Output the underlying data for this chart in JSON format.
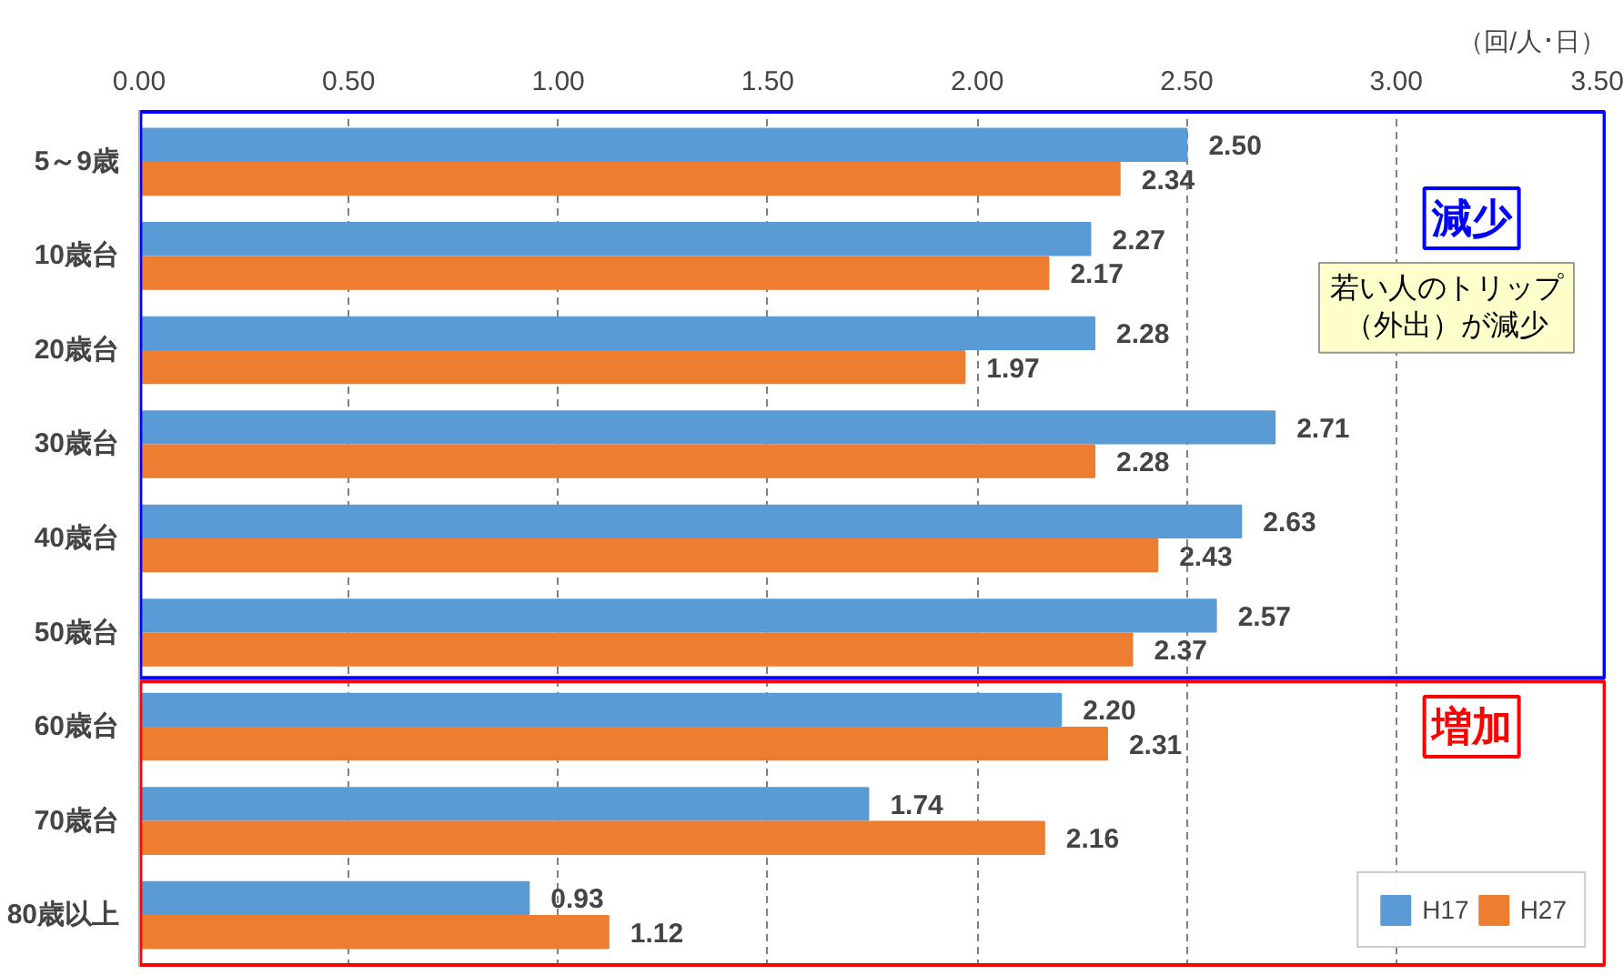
{
  "chart_data": {
    "type": "bar",
    "orientation": "horizontal",
    "categories": [
      "5～9歳",
      "10歳台",
      "20歳台",
      "30歳台",
      "40歳台",
      "50歳台",
      "60歳台",
      "70歳台",
      "80歳以上"
    ],
    "series": [
      {
        "name": "H17",
        "color": "#5b9bd5",
        "values": [
          2.5,
          2.27,
          2.28,
          2.71,
          2.63,
          2.57,
          2.2,
          1.74,
          0.93
        ],
        "value_labels": [
          "2.50",
          "2.27",
          "2.28",
          "2.71",
          "2.63",
          "2.57",
          "2.20",
          "1.74",
          "0.93"
        ]
      },
      {
        "name": "H27",
        "color": "#ed7d31",
        "values": [
          2.34,
          2.17,
          1.97,
          2.28,
          2.43,
          2.37,
          2.31,
          2.16,
          1.12
        ],
        "value_labels": [
          "2.34",
          "2.17",
          "1.97",
          "2.28",
          "2.43",
          "2.37",
          "2.31",
          "2.16",
          "1.12"
        ]
      }
    ],
    "xlim": [
      0,
      3.5
    ],
    "xticks": [
      {
        "value": 0,
        "label": "0.00"
      },
      {
        "value": 0.5,
        "label": "0.50"
      },
      {
        "value": 1,
        "label": "1.00"
      },
      {
        "value": 1.5,
        "label": "1.50"
      },
      {
        "value": 2,
        "label": "2.00"
      },
      {
        "value": 2.5,
        "label": "2.50"
      },
      {
        "value": 3,
        "label": "3.00"
      },
      {
        "value": 3.5,
        "label": "3.50"
      }
    ],
    "grid": "x",
    "legend": "bottom right",
    "annotations": [
      "（回/人･日）",
      "減少",
      "若い人のトリップ（外出）が減少",
      "増加"
    ]
  }
}
